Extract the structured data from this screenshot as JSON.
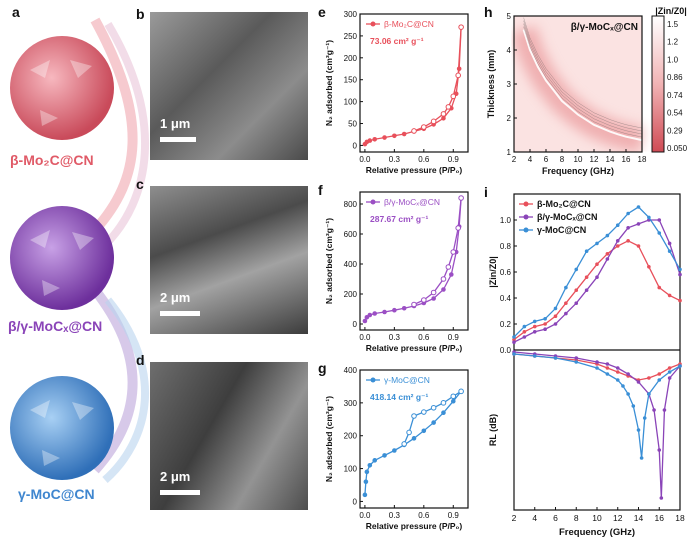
{
  "panels": {
    "a": {
      "label": "a",
      "materials": [
        {
          "name": "β-Mo₂C@CN",
          "color": "#e05a67"
        },
        {
          "name": "β/γ-MoCₓ@CN",
          "color": "#8a44b8"
        },
        {
          "name": "γ-MoC@CN",
          "color": "#3f86cf"
        }
      ]
    },
    "b": {
      "label": "b",
      "scale": "1 μm"
    },
    "c": {
      "label": "c",
      "scale": "2 μm"
    },
    "d": {
      "label": "d",
      "scale": "2 μm"
    },
    "e": {
      "label": "e"
    },
    "f": {
      "label": "f"
    },
    "g": {
      "label": "g"
    },
    "h": {
      "label": "h"
    },
    "i": {
      "label": "i"
    }
  },
  "chart_data": [
    {
      "id": "e",
      "type": "line",
      "series_name": "β-Mo₂C@CN",
      "annotation": "73.06 cm² g⁻¹",
      "color": "#e8505b",
      "xlabel": "Relative pressure (P/P₀)",
      "ylabel": "N₂ adsorbed (cm³g⁻¹)",
      "xlim": [
        -0.05,
        1.05
      ],
      "ylim": [
        -15,
        300
      ],
      "xticks": [
        0.0,
        0.3,
        0.6,
        0.9
      ],
      "yticks": [
        0,
        50,
        100,
        150,
        200,
        250,
        300
      ],
      "adsorption": [
        [
          0.0,
          3
        ],
        [
          0.02,
          8
        ],
        [
          0.05,
          11
        ],
        [
          0.1,
          14
        ],
        [
          0.2,
          18
        ],
        [
          0.3,
          22
        ],
        [
          0.4,
          26
        ],
        [
          0.5,
          32
        ],
        [
          0.6,
          38
        ],
        [
          0.7,
          48
        ],
        [
          0.8,
          62
        ],
        [
          0.88,
          85
        ],
        [
          0.93,
          118
        ],
        [
          0.96,
          175
        ],
        [
          0.98,
          270
        ]
      ],
      "desorption": [
        [
          0.98,
          270
        ],
        [
          0.95,
          160
        ],
        [
          0.9,
          112
        ],
        [
          0.85,
          88
        ],
        [
          0.8,
          72
        ],
        [
          0.7,
          55
        ],
        [
          0.6,
          42
        ],
        [
          0.5,
          33
        ]
      ]
    },
    {
      "id": "f",
      "type": "line",
      "series_name": "β/γ-MoCₓ@CN",
      "annotation": "287.67 cm² g⁻¹",
      "color": "#9b4fc4",
      "xlabel": "Relative pressure (P/P₀)",
      "ylabel": "N₂ adsorbed (cm³g⁻¹)",
      "xlim": [
        -0.05,
        1.05
      ],
      "ylim": [
        -40,
        880
      ],
      "xticks": [
        0.0,
        0.3,
        0.6,
        0.9
      ],
      "yticks": [
        0,
        200,
        400,
        600,
        800
      ],
      "adsorption": [
        [
          0.0,
          20
        ],
        [
          0.02,
          45
        ],
        [
          0.05,
          60
        ],
        [
          0.1,
          70
        ],
        [
          0.2,
          80
        ],
        [
          0.3,
          92
        ],
        [
          0.4,
          105
        ],
        [
          0.5,
          120
        ],
        [
          0.6,
          140
        ],
        [
          0.7,
          170
        ],
        [
          0.8,
          230
        ],
        [
          0.88,
          330
        ],
        [
          0.93,
          480
        ],
        [
          0.96,
          650
        ],
        [
          0.98,
          840
        ]
      ],
      "desorption": [
        [
          0.98,
          840
        ],
        [
          0.95,
          640
        ],
        [
          0.9,
          480
        ],
        [
          0.85,
          380
        ],
        [
          0.8,
          300
        ],
        [
          0.7,
          210
        ],
        [
          0.6,
          160
        ],
        [
          0.5,
          130
        ]
      ]
    },
    {
      "id": "g",
      "type": "line",
      "series_name": "γ-MoC@CN",
      "annotation": "418.14 cm² g⁻¹",
      "color": "#3a8fd6",
      "xlabel": "Relative pressure (P/P₀)",
      "ylabel": "N₂ adsorbed (cm³g⁻¹)",
      "xlim": [
        -0.05,
        1.05
      ],
      "ylim": [
        -20,
        400
      ],
      "xticks": [
        0.0,
        0.3,
        0.6,
        0.9
      ],
      "yticks": [
        0,
        100,
        200,
        300,
        400
      ],
      "adsorption": [
        [
          0.0,
          20
        ],
        [
          0.01,
          60
        ],
        [
          0.02,
          90
        ],
        [
          0.05,
          110
        ],
        [
          0.1,
          125
        ],
        [
          0.2,
          140
        ],
        [
          0.3,
          155
        ],
        [
          0.4,
          172
        ],
        [
          0.5,
          192
        ],
        [
          0.6,
          215
        ],
        [
          0.7,
          240
        ],
        [
          0.8,
          270
        ],
        [
          0.9,
          305
        ],
        [
          0.98,
          335
        ]
      ],
      "desorption": [
        [
          0.98,
          335
        ],
        [
          0.9,
          320
        ],
        [
          0.8,
          300
        ],
        [
          0.7,
          285
        ],
        [
          0.6,
          272
        ],
        [
          0.5,
          260
        ],
        [
          0.45,
          210
        ],
        [
          0.4,
          175
        ]
      ]
    },
    {
      "id": "h",
      "type": "heatmap",
      "title": "β/γ-MoCₓ@CN",
      "xlabel": "Frequency (GHz)",
      "ylabel": "Thickness (mm)",
      "xlim": [
        2,
        18
      ],
      "ylim": [
        1,
        5
      ],
      "xticks": [
        2,
        4,
        6,
        8,
        10,
        12,
        14,
        16,
        18
      ],
      "yticks": [
        1,
        2,
        3,
        4,
        5
      ],
      "colorbar_title": "|Zin/Z0|",
      "colorbar_ticks": [
        "1.5",
        "1.2",
        "1.0",
        "0.86",
        "0.74",
        "0.54",
        "0.29",
        "0.050"
      ],
      "ridge": [
        [
          3.2,
          4.6
        ],
        [
          4,
          4.0
        ],
        [
          5,
          3.5
        ],
        [
          6,
          3.1
        ],
        [
          7,
          2.8
        ],
        [
          8,
          2.5
        ],
        [
          9,
          2.3
        ],
        [
          10,
          2.1
        ],
        [
          11,
          1.95
        ],
        [
          12,
          1.8
        ],
        [
          13,
          1.7
        ],
        [
          14,
          1.6
        ],
        [
          15,
          1.52
        ],
        [
          16,
          1.45
        ],
        [
          17,
          1.4
        ],
        [
          18,
          1.35
        ]
      ]
    },
    {
      "id": "i",
      "type": "line",
      "xlabel": "Frequency (GHz)",
      "xlim": [
        2,
        18
      ],
      "xticks": [
        2,
        4,
        6,
        8,
        10,
        12,
        14,
        16,
        18
      ],
      "top": {
        "ylabel": "|Zin/Z0|",
        "ylim": [
          0,
          1.2
        ],
        "yticks": [
          0.0,
          0.2,
          0.4,
          0.6,
          0.8,
          1.0
        ],
        "series": [
          {
            "name": "β-Mo₂C@CN",
            "color": "#e8505b",
            "x": [
              2,
              3,
              4,
              5,
              6,
              7,
              8,
              9,
              10,
              11,
              12,
              13,
              14,
              15,
              16,
              17,
              18
            ],
            "values": [
              0.08,
              0.14,
              0.18,
              0.2,
              0.26,
              0.36,
              0.46,
              0.56,
              0.66,
              0.74,
              0.8,
              0.84,
              0.8,
              0.64,
              0.48,
              0.42,
              0.38
            ]
          },
          {
            "name": "β/γ-MoCₓ@CN",
            "color": "#8a44b8",
            "x": [
              2,
              3,
              4,
              5,
              6,
              7,
              8,
              9,
              10,
              11,
              12,
              13,
              14,
              15,
              16,
              17,
              18
            ],
            "values": [
              0.06,
              0.1,
              0.14,
              0.16,
              0.2,
              0.28,
              0.36,
              0.46,
              0.56,
              0.7,
              0.84,
              0.94,
              0.97,
              1.0,
              1.0,
              0.82,
              0.58
            ]
          },
          {
            "name": "γ-MoC@CN",
            "color": "#3a8fd6",
            "x": [
              2,
              3,
              4,
              5,
              6,
              7,
              8,
              9,
              10,
              11,
              12,
              13,
              14,
              15,
              16,
              17,
              18
            ],
            "values": [
              0.1,
              0.18,
              0.22,
              0.24,
              0.32,
              0.48,
              0.62,
              0.76,
              0.82,
              0.88,
              0.96,
              1.05,
              1.1,
              1.02,
              0.9,
              0.76,
              0.62
            ]
          }
        ]
      },
      "bottom": {
        "ylabel": "RL (dB)",
        "ylim": [
          -80,
          0
        ],
        "yticks": [],
        "series": [
          {
            "name": "β-Mo₂C@CN",
            "color": "#e8505b",
            "x": [
              2,
              4,
              6,
              8,
              10,
              11,
              12,
              13,
              14,
              15,
              16,
              17,
              18
            ],
            "values": [
              -2,
              -3,
              -4,
              -5,
              -7,
              -9,
              -11,
              -13,
              -15,
              -14,
              -12,
              -9,
              -7
            ]
          },
          {
            "name": "β/γ-MoCₓ@CN",
            "color": "#8a44b8",
            "x": [
              2,
              4,
              6,
              8,
              10,
              11,
              12,
              13,
              14,
              15,
              15.5,
              16,
              16.2,
              16.5,
              17,
              18
            ],
            "values": [
              -1,
              -2,
              -3,
              -4,
              -6,
              -7,
              -9,
              -12,
              -16,
              -22,
              -30,
              -50,
              -74,
              -30,
              -14,
              -8
            ]
          },
          {
            "name": "γ-MoC@CN",
            "color": "#3a8fd6",
            "x": [
              2,
              4,
              6,
              8,
              10,
              11,
              12,
              12.5,
              13,
              13.5,
              14,
              14.3,
              14.6,
              15,
              16,
              17,
              18
            ],
            "values": [
              -2,
              -3,
              -4,
              -6,
              -9,
              -12,
              -15,
              -18,
              -22,
              -28,
              -40,
              -54,
              -34,
              -22,
              -15,
              -11,
              -8
            ]
          }
        ]
      }
    }
  ]
}
